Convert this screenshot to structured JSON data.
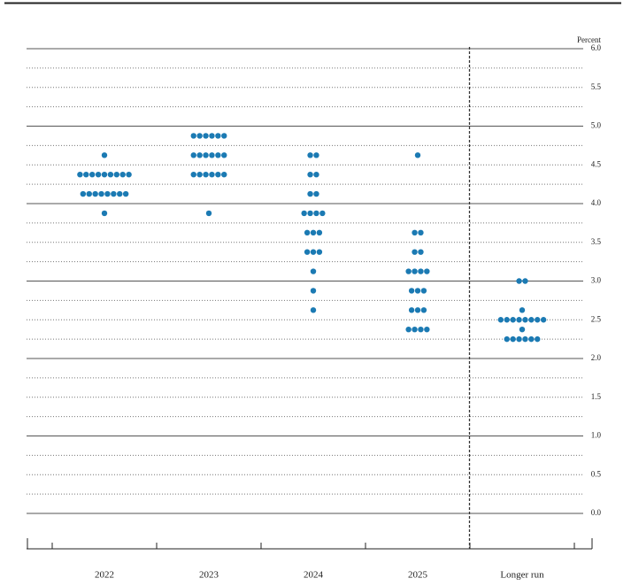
{
  "chart_data": {
    "type": "dot",
    "y_label": "Percent",
    "categories": [
      "2022",
      "2023",
      "2024",
      "2025",
      "Longer run"
    ],
    "color": "#1b7ab3",
    "dots": [
      [
        4.625,
        4.375,
        4.375,
        4.375,
        4.375,
        4.375,
        4.375,
        4.375,
        4.375,
        4.375,
        4.125,
        4.125,
        4.125,
        4.125,
        4.125,
        4.125,
        4.125,
        4.125,
        3.875
      ],
      [
        4.875,
        4.875,
        4.875,
        4.875,
        4.875,
        4.875,
        4.625,
        4.625,
        4.625,
        4.625,
        4.625,
        4.625,
        4.375,
        4.375,
        4.375,
        4.375,
        4.375,
        4.375,
        3.875
      ],
      [
        4.625,
        4.625,
        4.375,
        4.375,
        4.125,
        4.125,
        3.875,
        3.875,
        3.875,
        3.875,
        3.625,
        3.625,
        3.625,
        3.375,
        3.375,
        3.375,
        3.125,
        2.875,
        2.625
      ],
      [
        4.625,
        3.625,
        3.625,
        3.375,
        3.375,
        3.125,
        3.125,
        3.125,
        3.125,
        2.875,
        2.875,
        2.875,
        2.625,
        2.625,
        2.625,
        2.375,
        2.375,
        2.375,
        2.375
      ],
      [
        3.0,
        3.0,
        2.625,
        2.5,
        2.5,
        2.5,
        2.5,
        2.5,
        2.5,
        2.5,
        2.5,
        2.375,
        2.25,
        2.25,
        2.25,
        2.25,
        2.25,
        2.25
      ]
    ],
    "ylim": [
      0,
      6
    ],
    "yticks": [
      {
        "value": 0,
        "label": "0.0"
      },
      0.5,
      {
        "value": 1,
        "label": "1.0"
      },
      1.5,
      {
        "value": 2,
        "label": "2.0"
      },
      2.5,
      {
        "value": 3,
        "label": "3.0"
      },
      3.5,
      {
        "value": 4,
        "label": "4.0"
      },
      4.5,
      {
        "value": 5,
        "label": "5.0"
      },
      5.5,
      {
        "value": 6,
        "label": "6.0"
      }
    ],
    "grid": true
  }
}
